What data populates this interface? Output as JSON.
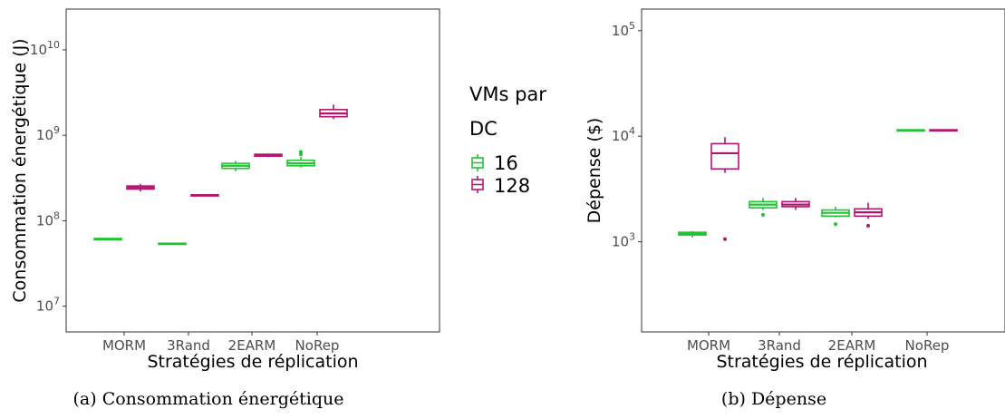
{
  "colors": {
    "group_16": "#22c332",
    "group_128": "#b3166e"
  },
  "legend": {
    "title_line1": "VMs par",
    "title_line2": "DC",
    "items": [
      {
        "label": "16",
        "color": "#22c332"
      },
      {
        "label": "128",
        "color": "#b3166e"
      }
    ]
  },
  "chart_data": [
    {
      "type": "box",
      "caption": "(a) Consommation énergétique",
      "xlabel": "Stratégies de réplication",
      "ylabel": "Consommation énergétique (J)",
      "yscale": "log",
      "ylim": [
        5000000,
        30000000000
      ],
      "yticks": [
        {
          "value": 10000000,
          "label": "10^7"
        },
        {
          "value": 100000000,
          "label": "10^8"
        },
        {
          "value": 1000000000,
          "label": "10^9"
        },
        {
          "value": 10000000000,
          "label": "10^10"
        }
      ],
      "categories": [
        "MORM",
        "3Rand",
        "2EARM",
        "NoRep"
      ],
      "series": [
        {
          "name": "16",
          "boxes": [
            {
              "category": "MORM",
              "min": 59000000,
              "q1": 60000000,
              "median": 61000000,
              "q3": 62000000,
              "max": 63000000,
              "outliers": []
            },
            {
              "category": "3Rand",
              "min": 53000000,
              "q1": 53500000,
              "median": 54000000,
              "q3": 54500000,
              "max": 55000000,
              "outliers": []
            },
            {
              "category": "2EARM",
              "min": 380000000,
              "q1": 410000000,
              "median": 440000000,
              "q3": 470000000,
              "max": 500000000,
              "outliers": []
            },
            {
              "category": "NoRep",
              "min": 420000000,
              "q1": 440000000,
              "median": 470000000,
              "q3": 510000000,
              "max": 560000000,
              "outliers": [
                640000000,
                600000000
              ]
            }
          ]
        },
        {
          "name": "128",
          "boxes": [
            {
              "category": "MORM",
              "min": 220000000,
              "q1": 235000000,
              "median": 245000000,
              "q3": 255000000,
              "max": 270000000,
              "outliers": []
            },
            {
              "category": "3Rand",
              "min": 198000000,
              "q1": 199000000,
              "median": 200000000,
              "q3": 201000000,
              "max": 202000000,
              "outliers": []
            },
            {
              "category": "2EARM",
              "min": 555000000,
              "q1": 570000000,
              "median": 585000000,
              "q3": 600000000,
              "max": 610000000,
              "outliers": []
            },
            {
              "category": "NoRep",
              "min": 1550000000,
              "q1": 1650000000,
              "median": 1800000000,
              "q3": 2000000000,
              "max": 2300000000,
              "outliers": []
            }
          ]
        }
      ]
    },
    {
      "type": "box",
      "caption": "(b) Dépense",
      "xlabel": "Stratégies de réplication",
      "ylabel": "Dépense ($)",
      "yscale": "log",
      "ylim": [
        140,
        160000
      ],
      "yticks": [
        {
          "value": 1000,
          "label": "10^3"
        },
        {
          "value": 10000,
          "label": "10^4"
        },
        {
          "value": 100000,
          "label": "10^5"
        }
      ],
      "categories": [
        "MORM",
        "3Rand",
        "2EARM",
        "NoRep"
      ],
      "series": [
        {
          "name": "16",
          "boxes": [
            {
              "category": "MORM",
              "min": 1100,
              "q1": 1160,
              "median": 1200,
              "q3": 1230,
              "max": 1260,
              "outliers": []
            },
            {
              "category": "3Rand",
              "min": 2000,
              "q1": 2100,
              "median": 2250,
              "q3": 2400,
              "max": 2600,
              "outliers": [
                1800
              ]
            },
            {
              "category": "2EARM",
              "min": 1700,
              "q1": 1750,
              "median": 1880,
              "q3": 2000,
              "max": 2150,
              "outliers": [
                1470
              ]
            },
            {
              "category": "NoRep",
              "min": 11200,
              "q1": 11300,
              "median": 11400,
              "q3": 11500,
              "max": 11600,
              "outliers": []
            }
          ]
        },
        {
          "name": "128",
          "boxes": [
            {
              "category": "MORM",
              "min": 4500,
              "q1": 4900,
              "median": 6900,
              "q3": 8500,
              "max": 9800,
              "outliers": [
                1060
              ]
            },
            {
              "category": "3Rand",
              "min": 2000,
              "q1": 2150,
              "median": 2250,
              "q3": 2400,
              "max": 2600,
              "outliers": []
            },
            {
              "category": "2EARM",
              "min": 1650,
              "q1": 1750,
              "median": 1900,
              "q3": 2050,
              "max": 2350,
              "outliers": [
                1420
              ]
            },
            {
              "category": "NoRep",
              "min": 11200,
              "q1": 11300,
              "median": 11400,
              "q3": 11500,
              "max": 11600,
              "outliers": []
            }
          ]
        }
      ]
    }
  ]
}
